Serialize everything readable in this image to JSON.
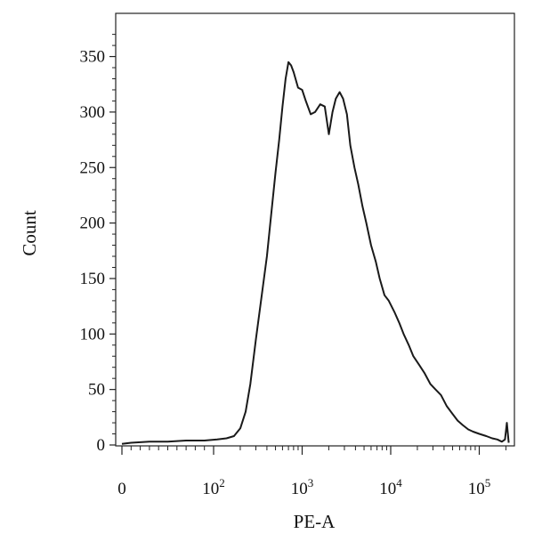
{
  "chart_data": {
    "type": "line",
    "title": "",
    "xlabel": "PE-A",
    "ylabel": "Count",
    "xscale": "biexponential (linear near 0, log above 10^2)",
    "xlim": [
      0,
      250000
    ],
    "ylim": [
      0,
      380
    ],
    "grid": false,
    "legend": "none",
    "line_color": "#1a1a1a",
    "yticks": [
      0,
      50,
      100,
      150,
      200,
      250,
      300,
      350
    ],
    "xticks": [
      {
        "base": "0",
        "exp": "",
        "value": 0
      },
      {
        "base": "10",
        "exp": "2",
        "value": 100
      },
      {
        "base": "10",
        "exp": "3",
        "value": 1000
      },
      {
        "base": "10",
        "exp": "4",
        "value": 10000
      },
      {
        "base": "10",
        "exp": "5",
        "value": 100000
      }
    ],
    "series": [
      {
        "x": [
          0,
          10,
          30,
          50,
          70,
          90,
          110,
          140,
          170,
          200,
          230,
          260,
          300,
          350,
          400,
          450,
          500,
          550,
          600,
          650,
          700,
          750,
          800,
          900,
          1000,
          1100,
          1250,
          1400,
          1600,
          1800,
          2000,
          2200,
          2400,
          2650,
          2900,
          3200,
          3500,
          3900,
          4300,
          4800,
          5300,
          6000,
          6800,
          7500,
          8500,
          9500,
          11000,
          12500,
          14000,
          16000,
          18000,
          21000,
          24000,
          28000,
          32000,
          37000,
          43000,
          50000,
          57000,
          65000,
          75000,
          85000,
          100000,
          120000,
          140000,
          160000,
          180000,
          195000,
          205000,
          215000
        ],
        "y": [
          1,
          2,
          3,
          3,
          4,
          4,
          5,
          6,
          8,
          15,
          30,
          55,
          95,
          135,
          170,
          210,
          245,
          275,
          305,
          330,
          345,
          342,
          336,
          322,
          320,
          310,
          298,
          300,
          307,
          305,
          280,
          300,
          312,
          318,
          312,
          298,
          270,
          250,
          235,
          215,
          200,
          180,
          165,
          150,
          135,
          130,
          120,
          110,
          100,
          90,
          80,
          72,
          65,
          55,
          50,
          45,
          35,
          28,
          22,
          18,
          14,
          12,
          10,
          8,
          6,
          5,
          3,
          5,
          20,
          2
        ]
      }
    ]
  }
}
